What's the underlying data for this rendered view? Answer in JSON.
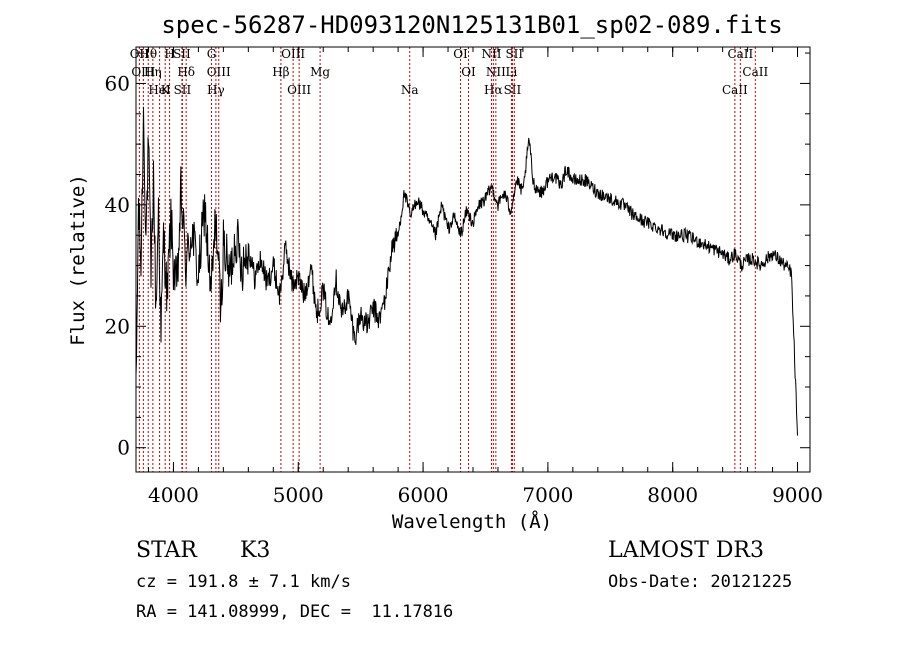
{
  "chart_data": {
    "type": "line",
    "title": "spec-56287-HD093120N125131B01_sp02-089.fits",
    "xlabel": "Wavelength (Å)",
    "ylabel": "Flux (relative)",
    "xlim": [
      3700,
      9100
    ],
    "ylim": [
      -4,
      66
    ],
    "xticks": [
      4000,
      5000,
      6000,
      7000,
      8000,
      9000
    ],
    "yticks": [
      0,
      20,
      40,
      60
    ],
    "grid": false,
    "series": [
      {
        "x": [
          3700,
          3720,
          3740,
          3760,
          3780,
          3800,
          3820,
          3840,
          3860,
          3880,
          3900,
          3920,
          3950,
          3980,
          4000,
          4030,
          4060,
          4100,
          4150,
          4200,
          4250,
          4300,
          4340,
          4380,
          4400,
          4450,
          4500,
          4550,
          4600,
          4650,
          4700,
          4750,
          4800,
          4850,
          4900,
          4950,
          5000,
          5050,
          5100,
          5150,
          5200,
          5250,
          5300,
          5350,
          5400,
          5450,
          5500,
          5550,
          5600,
          5650,
          5700,
          5750,
          5800,
          5850,
          5900,
          5950,
          6000,
          6050,
          6100,
          6150,
          6200,
          6250,
          6300,
          6350,
          6400,
          6450,
          6500,
          6550,
          6600,
          6650,
          6700,
          6750,
          6800,
          6850,
          6880,
          6900,
          6950,
          7000,
          7050,
          7100,
          7150,
          7200,
          7300,
          7400,
          7500,
          7600,
          7700,
          7800,
          7900,
          8000,
          8100,
          8200,
          8300,
          8400,
          8450,
          8500,
          8550,
          8600,
          8650,
          8700,
          8750,
          8800,
          8850,
          8900,
          8950,
          9000
        ],
        "y": [
          8,
          40,
          30,
          55,
          35,
          50,
          28,
          45,
          22,
          40,
          18,
          35,
          25,
          38,
          30,
          26,
          42,
          30,
          36,
          28,
          40,
          25,
          38,
          22,
          34,
          28,
          35,
          30,
          33,
          28,
          31,
          27,
          30,
          25,
          33,
          27,
          28,
          25,
          30,
          22,
          26,
          20,
          28,
          22,
          25,
          18,
          22,
          20,
          23,
          21,
          25,
          33,
          35,
          42,
          38,
          41,
          39,
          37,
          35,
          40,
          36,
          38,
          35,
          39,
          37,
          40,
          41,
          43,
          40,
          42,
          39,
          44,
          42,
          51,
          44,
          43,
          42,
          44,
          45,
          43,
          46,
          44,
          44,
          42,
          41,
          40,
          38,
          37,
          36,
          35,
          35,
          34,
          33,
          32,
          31,
          32,
          30,
          31,
          31,
          30,
          31,
          32,
          31,
          30,
          29,
          2
        ]
      }
    ],
    "lines": [
      {
        "label": "Hθ",
        "x": 3798
      },
      {
        "label": "Hη",
        "x": 3835
      },
      {
        "label": "K",
        "x": 3934
      },
      {
        "label": "H",
        "x": 3969
      },
      {
        "label": "Hδ",
        "x": 4102
      },
      {
        "label": "SII",
        "x": 4072
      },
      {
        "label": "OII",
        "x": 3727
      },
      {
        "label": "OIII",
        "x": 3759
      },
      {
        "label": "HeI",
        "x": 3889
      },
      {
        "label": "SII",
        "x": 4068
      },
      {
        "label": "OIII",
        "x": 4363
      },
      {
        "label": "Hγ",
        "x": 4340
      },
      {
        "label": "G",
        "x": 4305
      },
      {
        "label": "Hβ",
        "x": 4861
      },
      {
        "label": "OIII",
        "x": 5007
      },
      {
        "label": "OIII",
        "x": 4959
      },
      {
        "label": "Mg",
        "x": 5175
      },
      {
        "label": "Na",
        "x": 5893
      },
      {
        "label": "OI",
        "x": 6300
      },
      {
        "label": "OI",
        "x": 6364
      },
      {
        "label": "Hα",
        "x": 6563
      },
      {
        "label": "NII",
        "x": 6548
      },
      {
        "label": "NII",
        "x": 6583
      },
      {
        "label": "SII",
        "x": 6716
      },
      {
        "label": "SII",
        "x": 6731
      },
      {
        "label": "Li",
        "x": 6708
      },
      {
        "label": "CaII",
        "x": 8498
      },
      {
        "label": "CaII",
        "x": 8542
      },
      {
        "label": "CaII",
        "x": 8662
      }
    ]
  },
  "info": {
    "object_class": "STAR",
    "subclass": "K3",
    "survey": "LAMOST DR3",
    "velocity": "cz = 191.8 ± 7.1 km/s",
    "obs_date": "Obs-Date: 20121225",
    "coords": "RA = 141.08999, DEC =  11.17816"
  }
}
